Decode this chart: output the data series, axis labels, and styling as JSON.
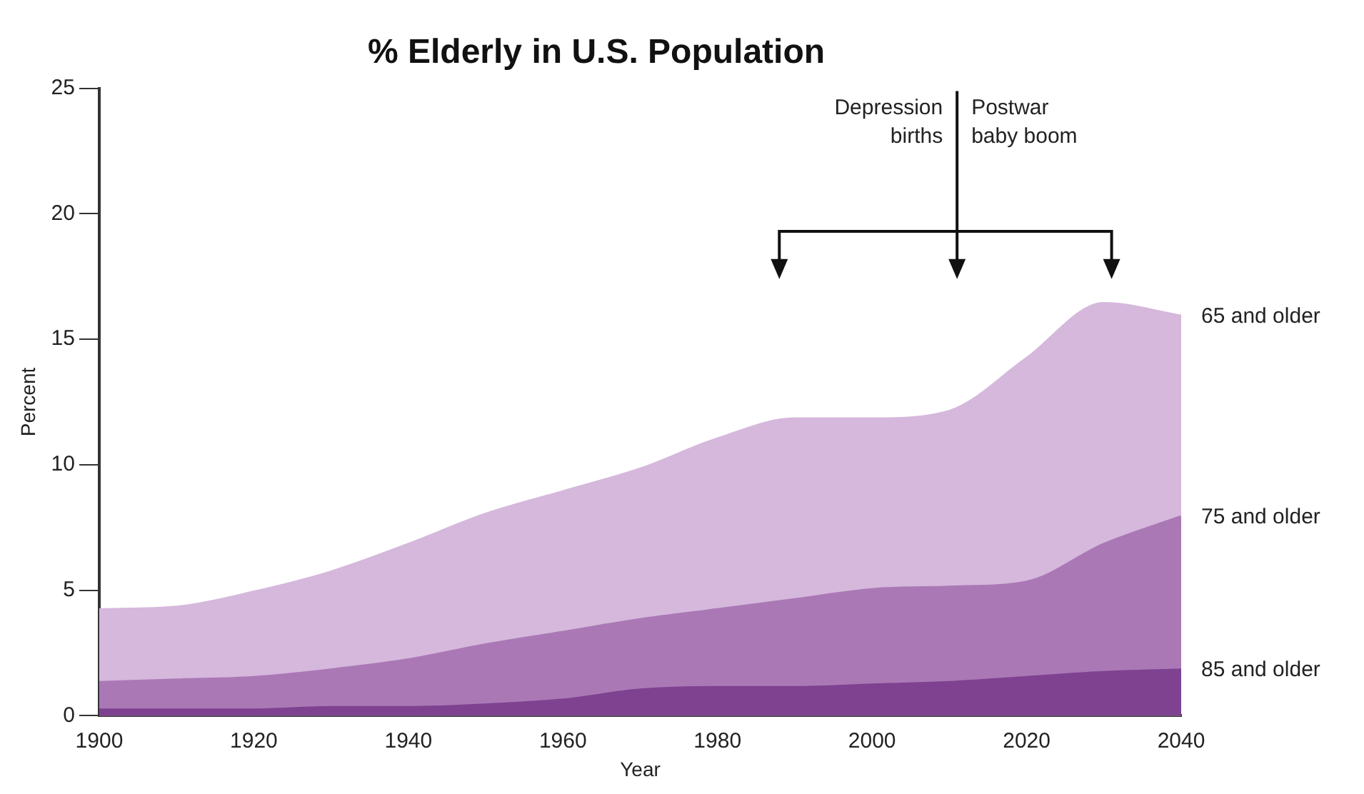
{
  "chart_data": {
    "type": "area",
    "title": "% Elderly in U.S. Population",
    "xlabel": "Year",
    "ylabel": "Percent",
    "x": [
      1900,
      1910,
      1920,
      1930,
      1940,
      1950,
      1960,
      1970,
      1980,
      1990,
      2000,
      2010,
      2020,
      2030,
      2040
    ],
    "series": [
      {
        "name": "65 and older",
        "color": "#d5b8dc",
        "values": [
          4.2,
          4.3,
          4.9,
          5.7,
          6.8,
          8.0,
          8.9,
          9.8,
          11.0,
          11.8,
          11.8,
          12.1,
          14.2,
          16.4,
          15.9
        ]
      },
      {
        "name": "75 and older",
        "color": "#ab78b6",
        "values": [
          1.3,
          1.4,
          1.5,
          1.8,
          2.2,
          2.8,
          3.3,
          3.8,
          4.2,
          4.6,
          5.0,
          5.1,
          5.3,
          6.8,
          7.9
        ]
      },
      {
        "name": "85 and older",
        "color": "#7e4290",
        "values": [
          0.2,
          0.2,
          0.2,
          0.3,
          0.3,
          0.4,
          0.6,
          1.0,
          1.1,
          1.1,
          1.2,
          1.3,
          1.5,
          1.7,
          1.8
        ]
      }
    ],
    "xlim": [
      1900,
      2040
    ],
    "xticks": [
      1900,
      1920,
      1940,
      1960,
      1980,
      2000,
      2020,
      2040
    ],
    "ylim": [
      0,
      25
    ],
    "yticks": [
      0,
      5,
      10,
      15,
      20,
      25
    ],
    "grid": false,
    "legend": false,
    "marker": "none",
    "line_style": "solid",
    "annotations": [
      "Depression births",
      "Postwar baby boom"
    ]
  }
}
